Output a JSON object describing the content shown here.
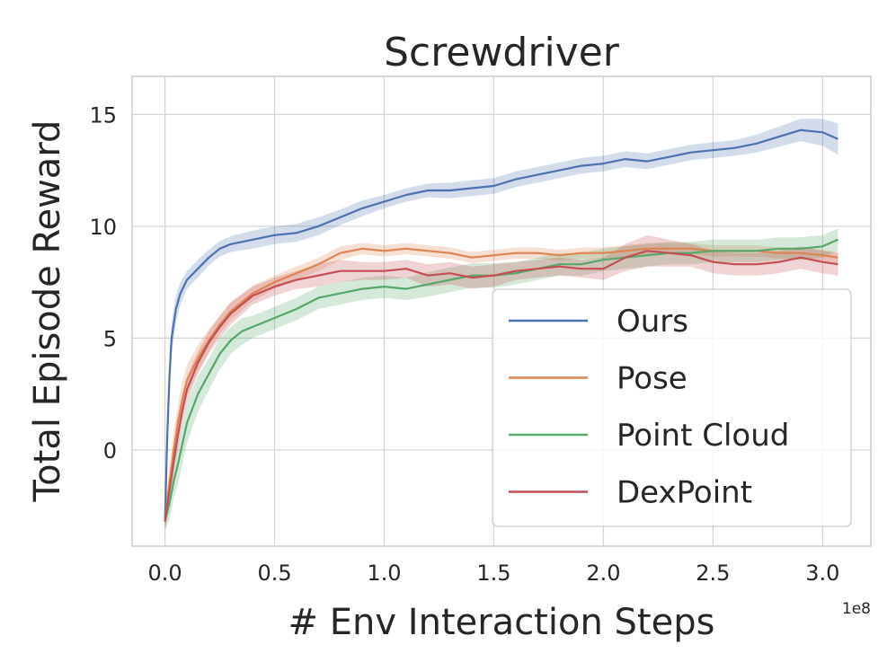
{
  "chart_data": {
    "type": "line",
    "title": "Screwdriver",
    "xlabel": "# Env Interaction Steps",
    "ylabel": "Total Episode Reward",
    "x_offset_label": "1e8",
    "xlim": [
      -0.15,
      3.22
    ],
    "ylim": [
      -4.3,
      16.7
    ],
    "x_ticks": [
      0.0,
      0.5,
      1.0,
      1.5,
      2.0,
      2.5,
      3.0
    ],
    "x_tick_labels": [
      "0.0",
      "0.5",
      "1.0",
      "1.5",
      "2.0",
      "2.5",
      "3.0"
    ],
    "y_ticks": [
      0,
      5,
      10,
      15
    ],
    "y_tick_labels": [
      "0",
      "5",
      "10",
      "15"
    ],
    "grid": true,
    "legend_position": "lower-right",
    "series": [
      {
        "name": "Ours",
        "color": "#4c72b0",
        "x": [
          0.0,
          0.01,
          0.02,
          0.03,
          0.05,
          0.07,
          0.1,
          0.15,
          0.2,
          0.25,
          0.3,
          0.4,
          0.5,
          0.6,
          0.7,
          0.8,
          0.9,
          1.0,
          1.1,
          1.2,
          1.3,
          1.4,
          1.5,
          1.6,
          1.7,
          1.8,
          1.9,
          2.0,
          2.1,
          2.2,
          2.3,
          2.4,
          2.5,
          2.6,
          2.7,
          2.8,
          2.9,
          3.0,
          3.07
        ],
        "y": [
          -3.2,
          0.5,
          3.2,
          5.0,
          6.3,
          7.0,
          7.6,
          8.1,
          8.6,
          9.0,
          9.2,
          9.4,
          9.6,
          9.7,
          10.0,
          10.4,
          10.8,
          11.1,
          11.4,
          11.6,
          11.6,
          11.7,
          11.8,
          12.1,
          12.3,
          12.5,
          12.7,
          12.8,
          13.0,
          12.9,
          13.1,
          13.3,
          13.4,
          13.5,
          13.7,
          14.0,
          14.3,
          14.2,
          13.9
        ],
        "band": [
          0.4,
          0.8,
          0.8,
          0.7,
          0.6,
          0.5,
          0.4,
          0.4,
          0.35,
          0.35,
          0.35,
          0.4,
          0.4,
          0.4,
          0.4,
          0.35,
          0.35,
          0.3,
          0.3,
          0.3,
          0.35,
          0.35,
          0.35,
          0.35,
          0.35,
          0.35,
          0.35,
          0.35,
          0.35,
          0.35,
          0.35,
          0.35,
          0.35,
          0.35,
          0.4,
          0.45,
          0.5,
          0.6,
          0.7
        ]
      },
      {
        "name": "Pose",
        "color": "#dd8452",
        "x": [
          0.0,
          0.02,
          0.04,
          0.06,
          0.08,
          0.1,
          0.15,
          0.2,
          0.25,
          0.3,
          0.4,
          0.5,
          0.6,
          0.7,
          0.8,
          0.9,
          1.0,
          1.1,
          1.2,
          1.3,
          1.4,
          1.5,
          1.6,
          1.7,
          1.8,
          1.9,
          2.0,
          2.1,
          2.2,
          2.3,
          2.4,
          2.5,
          2.6,
          2.7,
          2.8,
          2.9,
          3.0,
          3.07
        ],
        "y": [
          -3.2,
          -1.5,
          0.0,
          1.3,
          2.3,
          3.1,
          4.1,
          4.9,
          5.6,
          6.2,
          7.0,
          7.5,
          7.9,
          8.3,
          8.8,
          9.0,
          8.9,
          9.0,
          8.9,
          8.8,
          8.6,
          8.7,
          8.8,
          8.8,
          8.7,
          8.8,
          8.8,
          8.9,
          9.0,
          9.0,
          9.0,
          8.9,
          8.9,
          8.9,
          8.8,
          8.8,
          8.7,
          8.6
        ],
        "band": [
          0.4,
          0.8,
          0.8,
          0.8,
          0.8,
          0.7,
          0.6,
          0.5,
          0.4,
          0.4,
          0.35,
          0.3,
          0.3,
          0.3,
          0.3,
          0.25,
          0.25,
          0.25,
          0.25,
          0.25,
          0.25,
          0.25,
          0.25,
          0.25,
          0.25,
          0.25,
          0.25,
          0.25,
          0.25,
          0.25,
          0.25,
          0.25,
          0.25,
          0.25,
          0.25,
          0.25,
          0.25,
          0.25
        ]
      },
      {
        "name": "Point Cloud",
        "color": "#55a868",
        "x": [
          0.0,
          0.02,
          0.04,
          0.06,
          0.08,
          0.1,
          0.15,
          0.2,
          0.25,
          0.3,
          0.35,
          0.4,
          0.5,
          0.6,
          0.7,
          0.8,
          0.9,
          1.0,
          1.1,
          1.2,
          1.3,
          1.4,
          1.5,
          1.6,
          1.7,
          1.8,
          1.9,
          2.0,
          2.1,
          2.2,
          2.3,
          2.4,
          2.5,
          2.6,
          2.7,
          2.8,
          2.9,
          3.0,
          3.07
        ],
        "y": [
          -3.2,
          -2.4,
          -1.4,
          -0.6,
          0.3,
          1.2,
          2.5,
          3.4,
          4.3,
          4.9,
          5.3,
          5.5,
          5.9,
          6.3,
          6.8,
          7.0,
          7.2,
          7.3,
          7.2,
          7.4,
          7.6,
          7.8,
          7.8,
          7.9,
          8.1,
          8.3,
          8.3,
          8.5,
          8.6,
          8.7,
          8.8,
          8.8,
          8.9,
          8.9,
          8.9,
          9.0,
          9.0,
          9.1,
          9.4
        ],
        "band": [
          0.4,
          0.7,
          0.8,
          0.9,
          0.9,
          0.9,
          0.8,
          0.7,
          0.7,
          0.6,
          0.6,
          0.5,
          0.5,
          0.5,
          0.5,
          0.5,
          0.5,
          0.5,
          0.5,
          0.55,
          0.55,
          0.55,
          0.55,
          0.5,
          0.5,
          0.5,
          0.5,
          0.5,
          0.5,
          0.5,
          0.5,
          0.5,
          0.5,
          0.5,
          0.5,
          0.5,
          0.5,
          0.5,
          0.5
        ]
      },
      {
        "name": "DexPoint",
        "color": "#c44e52",
        "x": [
          0.0,
          0.02,
          0.04,
          0.06,
          0.08,
          0.1,
          0.15,
          0.2,
          0.25,
          0.3,
          0.4,
          0.5,
          0.6,
          0.7,
          0.8,
          0.9,
          1.0,
          1.1,
          1.2,
          1.3,
          1.4,
          1.5,
          1.6,
          1.7,
          1.8,
          1.9,
          2.0,
          2.1,
          2.2,
          2.3,
          2.4,
          2.5,
          2.6,
          2.7,
          2.8,
          2.9,
          3.0,
          3.07
        ],
        "y": [
          -3.2,
          -1.8,
          -0.5,
          0.7,
          1.8,
          2.7,
          3.9,
          4.8,
          5.5,
          6.1,
          6.9,
          7.3,
          7.6,
          7.8,
          8.0,
          8.0,
          8.0,
          8.1,
          7.8,
          7.9,
          7.7,
          7.8,
          8.0,
          8.1,
          8.2,
          8.1,
          8.1,
          8.6,
          8.9,
          8.8,
          8.7,
          8.4,
          8.3,
          8.3,
          8.4,
          8.6,
          8.4,
          8.3
        ],
        "band": [
          0.4,
          0.6,
          0.6,
          0.6,
          0.6,
          0.6,
          0.5,
          0.5,
          0.5,
          0.5,
          0.4,
          0.4,
          0.4,
          0.5,
          0.5,
          0.4,
          0.4,
          0.4,
          0.5,
          0.5,
          0.5,
          0.5,
          0.4,
          0.4,
          0.4,
          0.4,
          0.5,
          0.6,
          0.7,
          0.6,
          0.5,
          0.5,
          0.5,
          0.5,
          0.5,
          0.5,
          0.5,
          0.5
        ]
      }
    ]
  }
}
